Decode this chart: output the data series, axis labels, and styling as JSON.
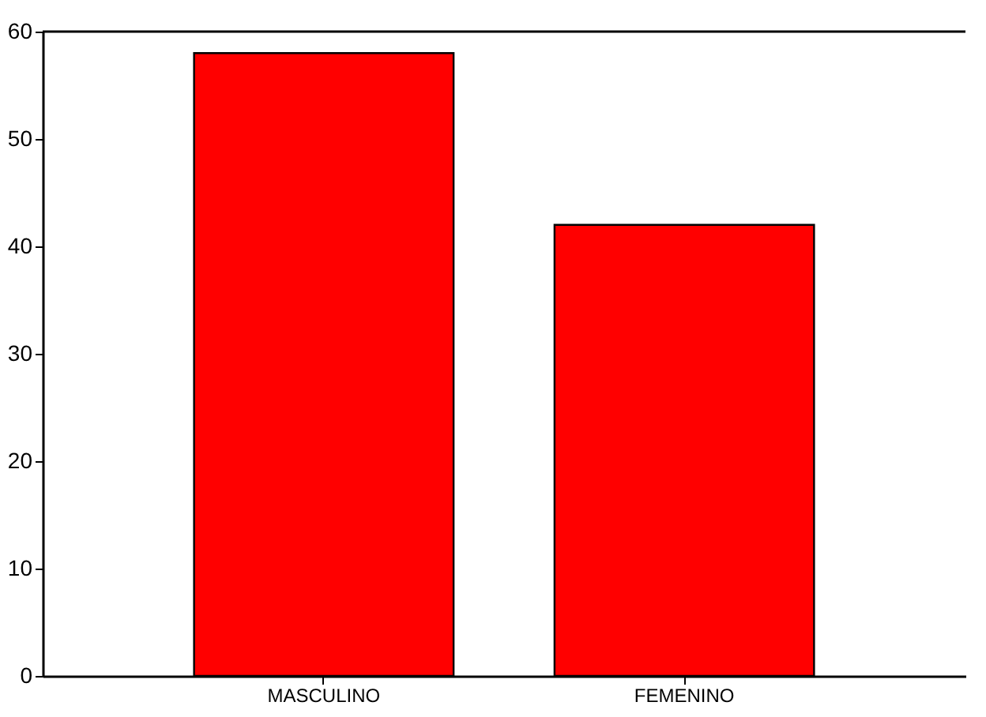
{
  "chart_data": {
    "type": "bar",
    "categories": [
      "MASCULINO",
      "FEMENINO"
    ],
    "values": [
      58,
      42
    ],
    "color": "#ff0000",
    "ylim": [
      0,
      60
    ],
    "yticks": [
      0,
      10,
      20,
      30,
      40,
      50,
      60
    ],
    "grid": false
  }
}
